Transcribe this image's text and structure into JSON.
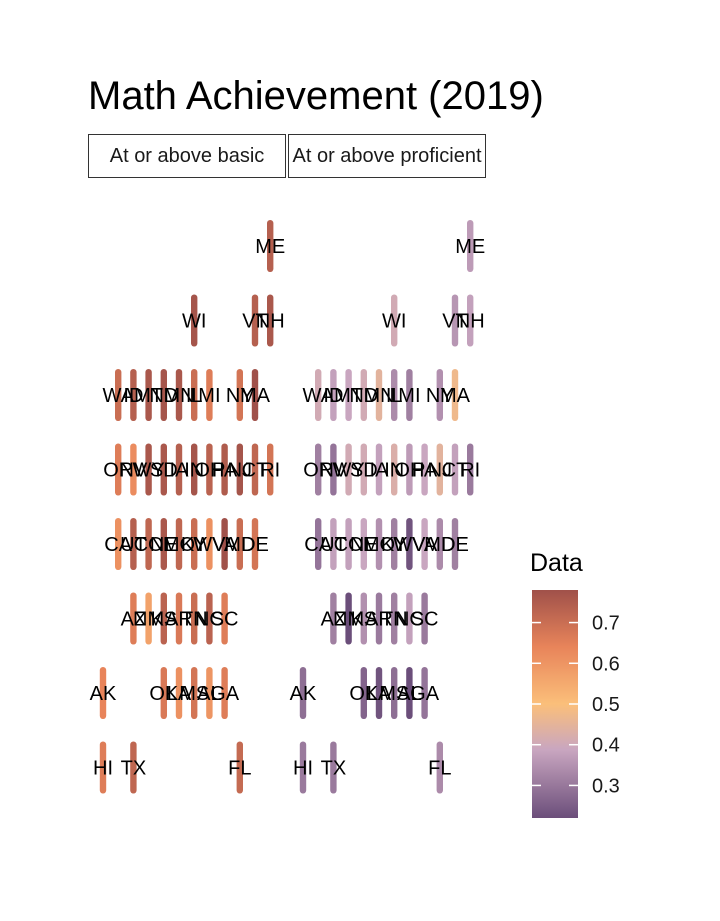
{
  "chart_data": {
    "type": "heatmap",
    "title": "Math Achievement (2019)",
    "facets": [
      "At or above basic",
      "At or above proficient"
    ],
    "legend": {
      "title": "Data",
      "placement": "right",
      "breaks": [
        "0.3",
        "0.4",
        "0.5",
        "0.6",
        "0.7"
      ],
      "range": [
        0.22,
        0.78
      ]
    },
    "colors": {
      "low": "#6b4e7a",
      "mid": "#fbbf7a",
      "high": "#a0514a"
    },
    "tiles": [
      {
        "state": "ME",
        "col": 11,
        "row": 0,
        "basic": 0.74,
        "proficient": 0.36
      },
      {
        "state": "WI",
        "col": 6,
        "row": 1,
        "basic": 0.77,
        "proficient": 0.4
      },
      {
        "state": "VT",
        "col": 10,
        "row": 1,
        "basic": 0.74,
        "proficient": 0.35
      },
      {
        "state": "NH",
        "col": 11,
        "row": 1,
        "basic": 0.76,
        "proficient": 0.37
      },
      {
        "state": "WA",
        "col": 1,
        "row": 2,
        "basic": 0.7,
        "proficient": 0.4
      },
      {
        "state": "ID",
        "col": 2,
        "row": 2,
        "basic": 0.74,
        "proficient": 0.37
      },
      {
        "state": "MT",
        "col": 3,
        "row": 2,
        "basic": 0.76,
        "proficient": 0.38
      },
      {
        "state": "ND",
        "col": 4,
        "row": 2,
        "basic": 0.77,
        "proficient": 0.4
      },
      {
        "state": "MN",
        "col": 5,
        "row": 2,
        "basic": 0.76,
        "proficient": 0.44
      },
      {
        "state": "IL",
        "col": 6,
        "row": 2,
        "basic": 0.7,
        "proficient": 0.33
      },
      {
        "state": "MI",
        "col": 7,
        "row": 2,
        "basic": 0.66,
        "proficient": 0.31
      },
      {
        "state": "NY",
        "col": 9,
        "row": 2,
        "basic": 0.68,
        "proficient": 0.34
      },
      {
        "state": "MA",
        "col": 10,
        "row": 2,
        "basic": 0.78,
        "proficient": 0.47
      },
      {
        "state": "OR",
        "col": 1,
        "row": 3,
        "basic": 0.66,
        "proficient": 0.31
      },
      {
        "state": "NV",
        "col": 2,
        "row": 3,
        "basic": 0.62,
        "proficient": 0.29
      },
      {
        "state": "WY",
        "col": 3,
        "row": 3,
        "basic": 0.76,
        "proficient": 0.4
      },
      {
        "state": "SD",
        "col": 4,
        "row": 3,
        "basic": 0.76,
        "proficient": 0.4
      },
      {
        "state": "IA",
        "col": 5,
        "row": 3,
        "basic": 0.74,
        "proficient": 0.37
      },
      {
        "state": "IN",
        "col": 6,
        "row": 3,
        "basic": 0.77,
        "proficient": 0.42
      },
      {
        "state": "OH",
        "col": 7,
        "row": 3,
        "basic": 0.73,
        "proficient": 0.36
      },
      {
        "state": "PA",
        "col": 8,
        "row": 3,
        "basic": 0.75,
        "proficient": 0.38
      },
      {
        "state": "NJ",
        "col": 9,
        "row": 3,
        "basic": 0.77,
        "proficient": 0.44
      },
      {
        "state": "CT",
        "col": 10,
        "row": 3,
        "basic": 0.72,
        "proficient": 0.37
      },
      {
        "state": "RI",
        "col": 11,
        "row": 3,
        "basic": 0.68,
        "proficient": 0.3
      },
      {
        "state": "CA",
        "col": 1,
        "row": 4,
        "basic": 0.61,
        "proficient": 0.29
      },
      {
        "state": "UT",
        "col": 2,
        "row": 4,
        "basic": 0.74,
        "proficient": 0.37
      },
      {
        "state": "CO",
        "col": 3,
        "row": 4,
        "basic": 0.72,
        "proficient": 0.37
      },
      {
        "state": "NE",
        "col": 4,
        "row": 4,
        "basic": 0.76,
        "proficient": 0.38
      },
      {
        "state": "MO",
        "col": 5,
        "row": 4,
        "basic": 0.72,
        "proficient": 0.34
      },
      {
        "state": "KY",
        "col": 6,
        "row": 4,
        "basic": 0.7,
        "proficient": 0.31
      },
      {
        "state": "WV",
        "col": 7,
        "row": 4,
        "basic": 0.61,
        "proficient": 0.23
      },
      {
        "state": "VA",
        "col": 8,
        "row": 4,
        "basic": 0.78,
        "proficient": 0.38
      },
      {
        "state": "MD",
        "col": 9,
        "row": 4,
        "basic": 0.7,
        "proficient": 0.33
      },
      {
        "state": "DE",
        "col": 10,
        "row": 4,
        "basic": 0.68,
        "proficient": 0.31
      },
      {
        "state": "AZ",
        "col": 2,
        "row": 5,
        "basic": 0.66,
        "proficient": 0.31
      },
      {
        "state": "NM",
        "col": 3,
        "row": 5,
        "basic": 0.57,
        "proficient": 0.21
      },
      {
        "state": "KS",
        "col": 4,
        "row": 5,
        "basic": 0.73,
        "proficient": 0.34
      },
      {
        "state": "AR",
        "col": 5,
        "row": 5,
        "basic": 0.67,
        "proficient": 0.3
      },
      {
        "state": "TN",
        "col": 6,
        "row": 5,
        "basic": 0.7,
        "proficient": 0.31
      },
      {
        "state": "NC",
        "col": 7,
        "row": 5,
        "basic": 0.73,
        "proficient": 0.37
      },
      {
        "state": "SC",
        "col": 8,
        "row": 5,
        "basic": 0.66,
        "proficient": 0.3
      },
      {
        "state": "AK",
        "col": 0,
        "row": 6,
        "basic": 0.64,
        "proficient": 0.28
      },
      {
        "state": "OK",
        "col": 4,
        "row": 6,
        "basic": 0.67,
        "proficient": 0.26
      },
      {
        "state": "LA",
        "col": 5,
        "row": 6,
        "basic": 0.61,
        "proficient": 0.23
      },
      {
        "state": "MS",
        "col": 6,
        "row": 6,
        "basic": 0.68,
        "proficient": 0.28
      },
      {
        "state": "AL",
        "col": 7,
        "row": 6,
        "basic": 0.6,
        "proficient": 0.21
      },
      {
        "state": "GA",
        "col": 8,
        "row": 6,
        "basic": 0.66,
        "proficient": 0.29
      },
      {
        "state": "HI",
        "col": 0,
        "row": 7,
        "basic": 0.66,
        "proficient": 0.3
      },
      {
        "state": "TX",
        "col": 2,
        "row": 7,
        "basic": 0.72,
        "proficient": 0.3
      },
      {
        "state": "FL",
        "col": 9,
        "row": 7,
        "basic": 0.71,
        "proficient": 0.33
      }
    ]
  }
}
